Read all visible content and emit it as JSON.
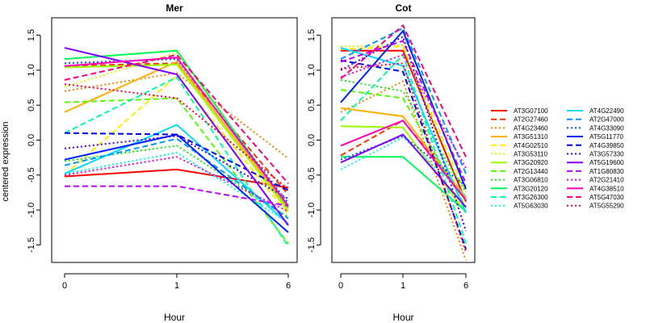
{
  "chart_data": {
    "type": "line",
    "ylabel": "centered expression",
    "legend_position": "right",
    "panels": [
      {
        "title": "Mer",
        "xlabel": "Hour",
        "x": [
          "0",
          "1",
          "6"
        ],
        "ylim": [
          -1.75,
          1.75
        ],
        "yticks": [
          -1.5,
          -1.0,
          -0.5,
          0.0,
          0.5,
          1.0,
          1.5
        ],
        "series": [
          {
            "name": "AT3G07100",
            "values": [
              -0.52,
              -0.42,
              -0.68
            ]
          },
          {
            "name": "AT2G27460",
            "values": [
              1.06,
              1.1,
              -0.78
            ]
          },
          {
            "name": "AT4G23460",
            "values": [
              0.7,
              0.96,
              -0.26
            ]
          },
          {
            "name": "AT3G51310",
            "values": [
              0.4,
              1.12,
              -0.98
            ]
          },
          {
            "name": "AT4G02510",
            "values": [
              -0.5,
              0.92,
              -1.06
            ]
          },
          {
            "name": "AT3G53110",
            "values": [
              0.76,
              1.25,
              -0.95
            ]
          },
          {
            "name": "AT3G20920",
            "values": [
              1.04,
              1.08,
              -1.02
            ]
          },
          {
            "name": "AT2G13440",
            "values": [
              0.54,
              0.6,
              -1.48
            ]
          },
          {
            "name": "AT3G06810",
            "values": [
              -0.3,
              -0.08,
              -1.1
            ]
          },
          {
            "name": "AT3G20120",
            "values": [
              1.16,
              1.28,
              -0.96
            ]
          },
          {
            "name": "AT3G26300",
            "values": [
              0.1,
              0.9,
              -1.52
            ]
          },
          {
            "name": "AT5G63030",
            "values": [
              -0.48,
              -0.18,
              -1.18
            ]
          },
          {
            "name": "AT4G22490",
            "values": [
              -0.48,
              0.22,
              -1.2
            ]
          },
          {
            "name": "AT2G47000",
            "values": [
              -0.36,
              0.02,
              -1.12
            ]
          },
          {
            "name": "AT4G33090",
            "values": [
              1.1,
              1.16,
              -0.9
            ]
          },
          {
            "name": "AT5G11770",
            "values": [
              -0.28,
              0.08,
              -1.32
            ]
          },
          {
            "name": "AT4G39850",
            "values": [
              0.1,
              0.08,
              -0.72
            ]
          },
          {
            "name": "AT3G57330",
            "values": [
              -0.12,
              0.06,
              -0.84
            ]
          },
          {
            "name": "AT5G19600",
            "values": [
              1.32,
              0.94,
              -1.22
            ]
          },
          {
            "name": "AT1G80830",
            "values": [
              -0.66,
              -0.66,
              -0.94
            ]
          },
          {
            "name": "AT2G21410",
            "values": [
              -0.5,
              -0.24,
              -1.02
            ]
          },
          {
            "name": "AT4G38510",
            "values": [
              1.06,
              1.18,
              -0.94
            ]
          },
          {
            "name": "AT5G47030",
            "values": [
              0.86,
              1.22,
              -0.62
            ]
          },
          {
            "name": "AT5G55290",
            "values": [
              0.8,
              0.6,
              -0.7
            ]
          }
        ]
      },
      {
        "title": "Cot",
        "xlabel": "Hour",
        "x": [
          "0",
          "1",
          "6"
        ],
        "ylim": [
          -1.75,
          1.75
        ],
        "yticks": [
          -1.5,
          -1.0,
          -0.5,
          0.0,
          0.5,
          1.0,
          1.5
        ],
        "series": [
          {
            "name": "AT3G07100",
            "values": [
              1.28,
              1.28,
              -0.88
            ]
          },
          {
            "name": "AT2G27460",
            "values": [
              -0.22,
              0.28,
              -0.82
            ]
          },
          {
            "name": "AT4G23460",
            "values": [
              0.4,
              0.84,
              -1.72
            ]
          },
          {
            "name": "AT3G51310",
            "values": [
              0.46,
              0.34,
              -0.82
            ]
          },
          {
            "name": "AT4G02510",
            "values": [
              1.3,
              1.34,
              -0.76
            ]
          },
          {
            "name": "AT3G53110",
            "values": [
              1.34,
              1.36,
              -1.02
            ]
          },
          {
            "name": "AT3G20920",
            "values": [
              0.2,
              0.18,
              -1.04
            ]
          },
          {
            "name": "AT2G13440",
            "values": [
              0.72,
              0.6,
              -0.96
            ]
          },
          {
            "name": "AT3G06810",
            "values": [
              0.86,
              0.7,
              -0.74
            ]
          },
          {
            "name": "AT3G20120",
            "values": [
              -0.24,
              -0.24,
              -1.02
            ]
          },
          {
            "name": "AT3G26300",
            "values": [
              0.28,
              1.22,
              -1.48
            ]
          },
          {
            "name": "AT5G63030",
            "values": [
              -0.42,
              0.04,
              -0.8
            ]
          },
          {
            "name": "AT4G22490",
            "values": [
              1.32,
              1.06,
              -1.04
            ]
          },
          {
            "name": "AT2G47000",
            "values": [
              1.16,
              1.6,
              -0.48
            ]
          },
          {
            "name": "AT4G33090",
            "values": [
              -0.28,
              0.06,
              -0.66
            ]
          },
          {
            "name": "AT5G11770",
            "values": [
              0.54,
              1.56,
              -0.7
            ]
          },
          {
            "name": "AT4G39850",
            "values": [
              1.14,
              0.98,
              -1.56
            ]
          },
          {
            "name": "AT3G57330",
            "values": [
              1.0,
              1.48,
              -1.3
            ]
          },
          {
            "name": "AT5G19600",
            "values": [
              -0.32,
              0.08,
              -0.96
            ]
          },
          {
            "name": "AT1G80830",
            "values": [
              1.12,
              1.42,
              -0.62
            ]
          },
          {
            "name": "AT2G21410",
            "values": [
              0.9,
              1.22,
              -0.4
            ]
          },
          {
            "name": "AT4G38510",
            "values": [
              -0.08,
              0.28,
              -0.86
            ]
          },
          {
            "name": "AT5G47030",
            "values": [
              0.88,
              1.64,
              -0.24
            ]
          },
          {
            "name": "AT5G55290",
            "values": [
              1.02,
              1.1,
              -1.6
            ]
          }
        ]
      }
    ],
    "legend": [
      {
        "name": "AT3G07100",
        "color": "#ff0000",
        "dash": "solid"
      },
      {
        "name": "AT2G27460",
        "color": "#ff3300",
        "dash": "dashed"
      },
      {
        "name": "AT4G23460",
        "color": "#ff7f00",
        "dash": "dotted"
      },
      {
        "name": "AT3G51310",
        "color": "#ffb000",
        "dash": "solid"
      },
      {
        "name": "AT4G02510",
        "color": "#ffee00",
        "dash": "dashed"
      },
      {
        "name": "AT3G53110",
        "color": "#d8ff00",
        "dash": "dotted"
      },
      {
        "name": "AT3G20920",
        "color": "#99ff00",
        "dash": "solid"
      },
      {
        "name": "AT2G13440",
        "color": "#55ff00",
        "dash": "dashed"
      },
      {
        "name": "AT3G06810",
        "color": "#11ee11",
        "dash": "dotted"
      },
      {
        "name": "AT3G20120",
        "color": "#00ff55",
        "dash": "solid"
      },
      {
        "name": "AT3G26300",
        "color": "#00ffa0",
        "dash": "dashed"
      },
      {
        "name": "AT5G63030",
        "color": "#00ffdd",
        "dash": "dotted"
      },
      {
        "name": "AT4G22490",
        "color": "#00ddff",
        "dash": "solid"
      },
      {
        "name": "AT2G47000",
        "color": "#0099ff",
        "dash": "dashed"
      },
      {
        "name": "AT4G33090",
        "color": "#0055ff",
        "dash": "dotted"
      },
      {
        "name": "AT5G11770",
        "color": "#0022ff",
        "dash": "solid"
      },
      {
        "name": "AT4G39850",
        "color": "#0000ee",
        "dash": "dashed"
      },
      {
        "name": "AT3G57330",
        "color": "#4400ff",
        "dash": "dotted"
      },
      {
        "name": "AT5G19600",
        "color": "#8000ff",
        "dash": "solid"
      },
      {
        "name": "AT1G80830",
        "color": "#bb00ff",
        "dash": "dashed"
      },
      {
        "name": "AT2G21410",
        "color": "#ee00ee",
        "dash": "dotted"
      },
      {
        "name": "AT4G38510",
        "color": "#ff00bb",
        "dash": "solid"
      },
      {
        "name": "AT5G47030",
        "color": "#ff0077",
        "dash": "dashed"
      },
      {
        "name": "AT5G55290",
        "color": "#ff0033",
        "dash": "dotted"
      }
    ],
    "grid": false
  }
}
